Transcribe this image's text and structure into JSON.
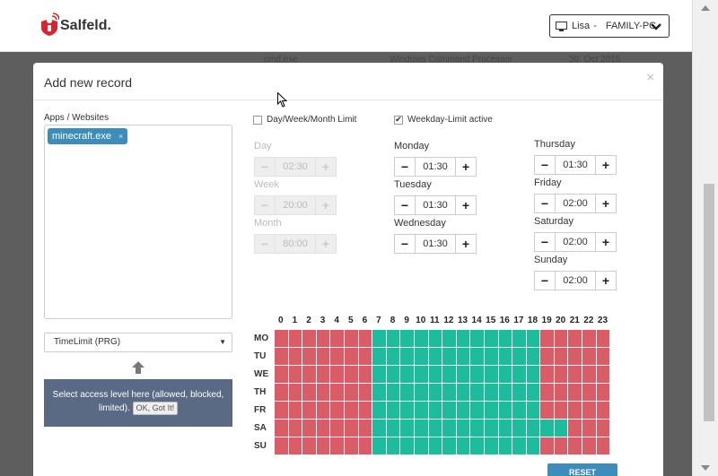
{
  "header": {
    "logo_text": "Salfeld.",
    "user": "Lisa",
    "separator": "-",
    "computer": "FAMILY-PC"
  },
  "background_row": {
    "app": "cmd.exe",
    "description": "Windows Command Processor",
    "date": "30. Oct 2015"
  },
  "modal": {
    "title": "Add new record",
    "close": "×",
    "apps_label": "Apps / Websites",
    "apps": [
      "minecraft.exe"
    ],
    "tag_remove": "×",
    "access_level": "TimeLimit (PRG)",
    "tooltip_text": "Select access level here (allowed, blocked, limited).",
    "tooltip_button": "OK, Got It!",
    "day_week_month_label": "Day/Week/Month Limit",
    "day_week_month_checked": false,
    "weekday_limit_label": "Weekday-Limit active",
    "weekday_limit_checked": true,
    "limits": {
      "day": {
        "label": "Day",
        "value": "02:30"
      },
      "week": {
        "label": "Week",
        "value": "20:00"
      },
      "month": {
        "label": "Month",
        "value": "80:00"
      }
    },
    "weekdays": {
      "monday": {
        "label": "Monday",
        "value": "01:30"
      },
      "tuesday": {
        "label": "Tuesday",
        "value": "01:30"
      },
      "wednesday": {
        "label": "Wednesday",
        "value": "01:30"
      },
      "thursday": {
        "label": "Thursday",
        "value": "01:30"
      },
      "friday": {
        "label": "Friday",
        "value": "02:00"
      },
      "saturday": {
        "label": "Saturday",
        "value": "02:00"
      },
      "sunday": {
        "label": "Sunday",
        "value": "02:00"
      }
    },
    "minus": "−",
    "plus": "+",
    "reset_label": "RESET"
  },
  "schedule": {
    "hours": [
      "0",
      "1",
      "2",
      "3",
      "4",
      "5",
      "6",
      "7",
      "8",
      "9",
      "10",
      "11",
      "12",
      "13",
      "14",
      "15",
      "16",
      "17",
      "18",
      "19",
      "20",
      "21",
      "22",
      "23"
    ],
    "days": [
      "MO",
      "TU",
      "WE",
      "TH",
      "FR",
      "SA",
      "SU"
    ],
    "allowed_ranges": {
      "MO": [
        7,
        19
      ],
      "TU": [
        7,
        19
      ],
      "WE": [
        7,
        19
      ],
      "TH": [
        7,
        19
      ],
      "FR": [
        7,
        19
      ],
      "SA": [
        7,
        21
      ],
      "SU": [
        7,
        19
      ]
    },
    "colors": {
      "allowed": "#1cbc9c",
      "blocked": "#d95c66"
    }
  },
  "colors": {
    "accent": "#3c8dbc",
    "tooltip": "#5a6a85"
  },
  "icons": [
    "computer-icon",
    "chevron-down-icon",
    "arrow-up-icon",
    "close-icon",
    "checkbox-icon"
  ]
}
